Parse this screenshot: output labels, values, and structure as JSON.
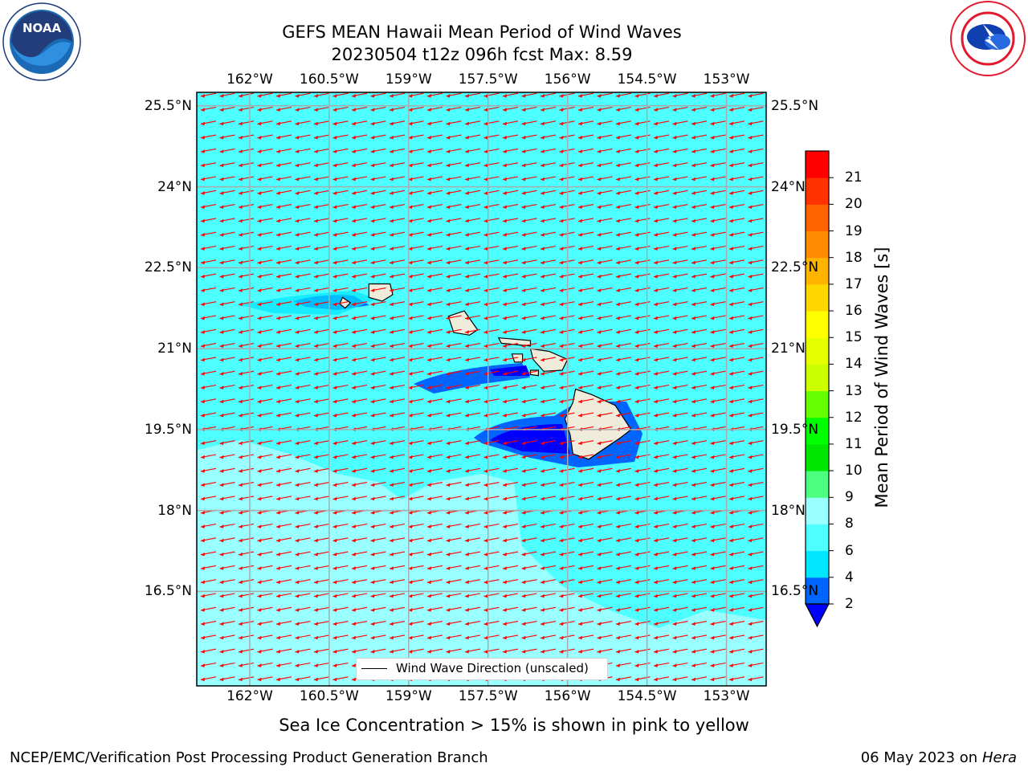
{
  "header": {
    "title_line1": "GEFS MEAN Hawaii Mean Period of Wind Waves",
    "title_line2": "20230504 t12z 096h fcst   Max: 8.59"
  },
  "logos": {
    "left": {
      "text": "NOAA",
      "icon": "noaa-logo-icon",
      "color": "#1a6ab5"
    },
    "right": {
      "icon": "national-weather-service-logo-icon",
      "color": "#1040b0",
      "ring_color": "#e3192f"
    }
  },
  "map": {
    "lon_ticks": [
      "162°W",
      "160.5°W",
      "159°W",
      "157.5°W",
      "156°W",
      "154.5°W",
      "153°W"
    ],
    "lat_ticks": [
      "25.5°N",
      "24°N",
      "22.5°N",
      "21°N",
      "19.5°N",
      "18°N",
      "16.5°N"
    ],
    "lon_range": [
      -163,
      -152.25
    ],
    "lat_range": [
      14.75,
      25.75
    ],
    "ocean_color": "#4dffff",
    "land_color": "#f0ecdb",
    "arrow_color": "#ff0000",
    "legend_label": "Wind Wave Direction (unscaled)"
  },
  "colorbar": {
    "label": "Mean Period of Wind Waves [s]",
    "ticks": [
      "2",
      "4",
      "6",
      "8",
      "9",
      "10",
      "11",
      "12",
      "13",
      "14",
      "15",
      "16",
      "17",
      "18",
      "19",
      "20",
      "21"
    ],
    "colors": [
      "#0064ff",
      "#00e6ff",
      "#4dffff",
      "#99ffff",
      "#4dff80",
      "#00e600",
      "#00ff00",
      "#66ff00",
      "#ccff00",
      "#e6ff00",
      "#ffff00",
      "#ffd700",
      "#ffb400",
      "#ff8c00",
      "#ff6400",
      "#ff3200",
      "#ff0000"
    ],
    "under_color": "#0000ff"
  },
  "footer": {
    "note": "Sea Ice Concentration > 15% is shown in pink to yellow",
    "credit_left": "NCEP/EMC/Verification Post Processing Product Generation Branch",
    "date": "06 May 2023 on",
    "machine": "Hera"
  }
}
